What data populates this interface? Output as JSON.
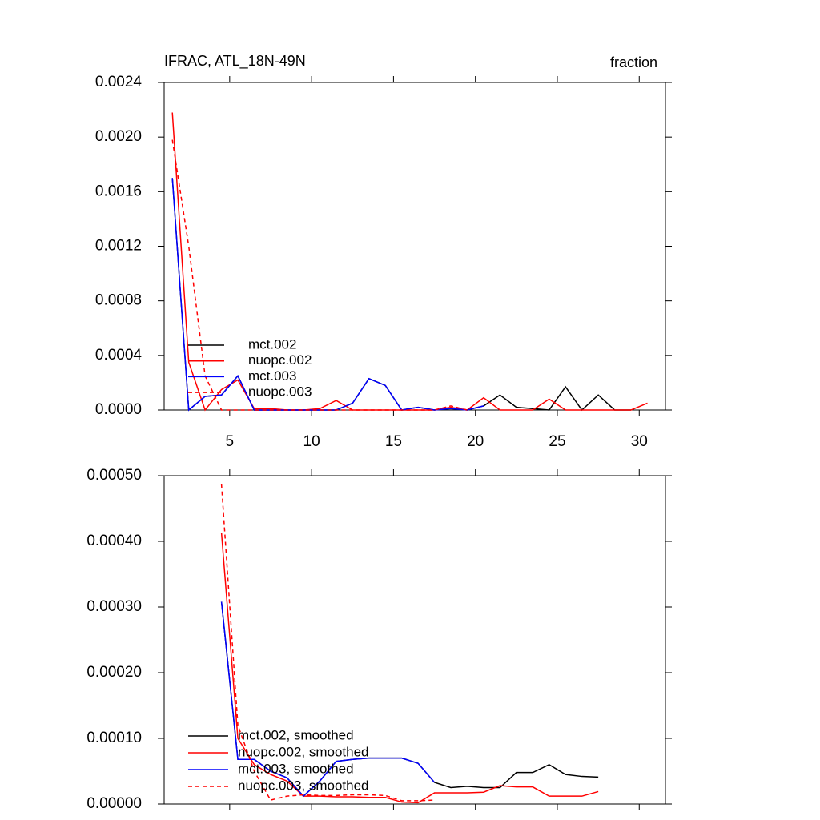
{
  "chart_data": [
    {
      "type": "line",
      "title": "IFRAC, ATL_18N-49N",
      "subtitle": "fraction",
      "x": [
        1.5,
        2.5,
        3.5,
        4.5,
        5.5,
        6.5,
        7.5,
        8.5,
        9.5,
        10.5,
        11.5,
        12.5,
        13.5,
        14.5,
        15.5,
        16.5,
        17.5,
        18.5,
        19.5,
        20.5,
        21.5,
        22.5,
        23.5,
        24.5,
        25.5,
        26.5,
        27.5,
        28.5,
        29.5,
        30.5
      ],
      "xlim": [
        1,
        31.6
      ],
      "xticks": [
        5,
        10,
        15,
        20,
        25,
        30
      ],
      "xticklabels": true,
      "ylim": [
        0,
        0.0024
      ],
      "yticks": [
        {
          "value": 0,
          "label": "0.0000"
        },
        {
          "value": 0.0004,
          "label": "0.0004"
        },
        {
          "value": 0.0008,
          "label": "0.0008"
        },
        {
          "value": 0.0012,
          "label": "0.0012"
        },
        {
          "value": 0.0016,
          "label": "0.0016"
        },
        {
          "value": 0.002,
          "label": "0.0020"
        },
        {
          "value": 0.0024,
          "label": "0.0024"
        }
      ],
      "legend": "lower left",
      "series": [
        {
          "name": "mct.002",
          "color": "#000000",
          "dashed": false,
          "values": [
            0.0017,
            0,
            0.0001,
            0.00011,
            0.00025,
            0,
            0,
            0,
            0,
            0,
            0,
            5e-05,
            0.00023,
            0.00018,
            0,
            2e-05,
            0,
            1e-05,
            0,
            3e-05,
            0.00011,
            2e-05,
            1e-05,
            0,
            0.00017,
            0,
            0.00011,
            0,
            0,
            null
          ]
        },
        {
          "name": "nuopc.002",
          "color": "#ff0000",
          "dashed": false,
          "values": [
            0.00218,
            0.00035,
            0,
            0.00015,
            0.00022,
            1e-05,
            1e-05,
            0,
            0,
            1e-05,
            7e-05,
            0,
            0,
            0,
            0,
            0,
            0,
            2e-05,
            0,
            9e-05,
            0,
            0,
            0,
            8e-05,
            0,
            0,
            0,
            0,
            0,
            5e-05
          ]
        },
        {
          "name": "mct.003",
          "color": "#0000ff",
          "dashed": false,
          "values": [
            0.0017,
            0,
            0.0001,
            0.00011,
            0.00025,
            0,
            0,
            0,
            0,
            0,
            0,
            5e-05,
            0.00023,
            0.00018,
            0,
            2e-05,
            0,
            1e-05,
            0,
            3e-05,
            null,
            null,
            null,
            null,
            null,
            null,
            null,
            null,
            null,
            null
          ]
        },
        {
          "name": "nuopc.003",
          "color": "#ff0000",
          "dashed": true,
          "values": [
            0.00198,
            0.0012,
            0.00025,
            0,
            0,
            0,
            0,
            0,
            0,
            0,
            0,
            0,
            0,
            0,
            0,
            0,
            0,
            3e-05,
            0,
            null,
            null,
            null,
            null,
            null,
            null,
            null,
            null,
            null,
            null,
            null
          ]
        }
      ]
    },
    {
      "type": "line",
      "x": [
        4.5,
        5.5,
        6.5,
        7.5,
        8.5,
        9.5,
        10.5,
        11.5,
        12.5,
        13.5,
        14.5,
        15.5,
        16.5,
        17.5,
        18.5,
        19.5,
        20.5,
        21.5,
        22.5,
        23.5,
        24.5,
        25.5,
        26.5,
        27.5
      ],
      "xlim": [
        1,
        31.6
      ],
      "xticks": [
        5,
        10,
        15,
        20,
        25,
        30
      ],
      "xticklabels": false,
      "ylim": [
        0,
        0.0005
      ],
      "yticks": [
        {
          "value": 0,
          "label": "0.00000"
        },
        {
          "value": 0.0001,
          "label": "0.00010"
        },
        {
          "value": 0.0002,
          "label": "0.00020"
        },
        {
          "value": 0.0003,
          "label": "0.00030"
        },
        {
          "value": 0.0004,
          "label": "0.00040"
        },
        {
          "value": 0.0005,
          "label": "0.00050"
        }
      ],
      "legend": "lower left",
      "series": [
        {
          "name": "mct.002, smoothed",
          "color": "#000000",
          "dashed": false,
          "values": [
            0.000308,
            6.8e-05,
            6.8e-05,
            5e-05,
            4e-05,
            1.2e-05,
            3.5e-05,
            6.5e-05,
            6.8e-05,
            7e-05,
            7e-05,
            7e-05,
            6.2e-05,
            3.3e-05,
            2.5e-05,
            2.7e-05,
            2.5e-05,
            2.5e-05,
            4.8e-05,
            4.8e-05,
            6e-05,
            4.5e-05,
            4.2e-05,
            4.1e-05
          ]
        },
        {
          "name": "nuopc.002, smoothed",
          "color": "#ff0000",
          "dashed": false,
          "values": [
            0.000413,
            0.0001,
            6e-05,
            4.5e-05,
            3.5e-05,
            1.2e-05,
            1.2e-05,
            1.1e-05,
            1.1e-05,
            1e-05,
            1e-05,
            3e-06,
            2e-06,
            1.7e-05,
            1.7e-05,
            1.7e-05,
            1.8e-05,
            2.8e-05,
            2.6e-05,
            2.6e-05,
            1.2e-05,
            1.2e-05,
            1.2e-05,
            1.9e-05
          ]
        },
        {
          "name": "mct.003, smoothed",
          "color": "#0000ff",
          "dashed": false,
          "values": [
            0.000308,
            6.8e-05,
            6.8e-05,
            5e-05,
            4e-05,
            1.2e-05,
            3.5e-05,
            6.5e-05,
            6.8e-05,
            7e-05,
            7e-05,
            7e-05,
            6.2e-05,
            3.3e-05,
            null,
            null,
            null,
            null,
            null,
            null,
            null,
            null,
            null,
            null
          ]
        },
        {
          "name": "nuopc.003, smoothed",
          "color": "#ff0000",
          "dashed": true,
          "values": [
            0.000487,
            0.00012,
            5e-05,
            6e-06,
            1.2e-05,
            1.4e-05,
            1.3e-05,
            1.3e-05,
            1.4e-05,
            1.4e-05,
            1.3e-05,
            5e-06,
            5e-06,
            6e-06,
            null,
            null,
            null,
            null,
            null,
            null,
            null,
            null,
            null,
            null
          ]
        }
      ]
    }
  ]
}
